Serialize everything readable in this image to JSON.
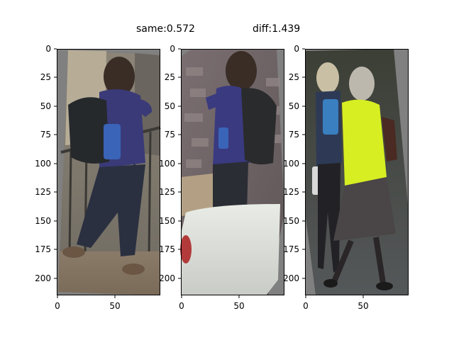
{
  "titles": {
    "same": "same:0.572",
    "diff": "diff:1.439"
  },
  "panels": [
    {
      "name": "panel-anchor",
      "xticks": [
        "0",
        "50"
      ],
      "yticks": [
        "0",
        "25",
        "50",
        "75",
        "100",
        "125",
        "150",
        "175",
        "200"
      ]
    },
    {
      "name": "panel-same",
      "xticks": [
        "0",
        "50"
      ],
      "yticks": [
        "0",
        "25",
        "50",
        "75",
        "100",
        "125",
        "150",
        "175",
        "200"
      ]
    },
    {
      "name": "panel-diff",
      "xticks": [
        "0",
        "50"
      ],
      "yticks": [
        "0",
        "25",
        "50",
        "75",
        "100",
        "125",
        "150",
        "175",
        "200"
      ]
    }
  ],
  "colors": {
    "background": "#ffffff",
    "image_padding": "#808080",
    "axis": "#000000"
  }
}
